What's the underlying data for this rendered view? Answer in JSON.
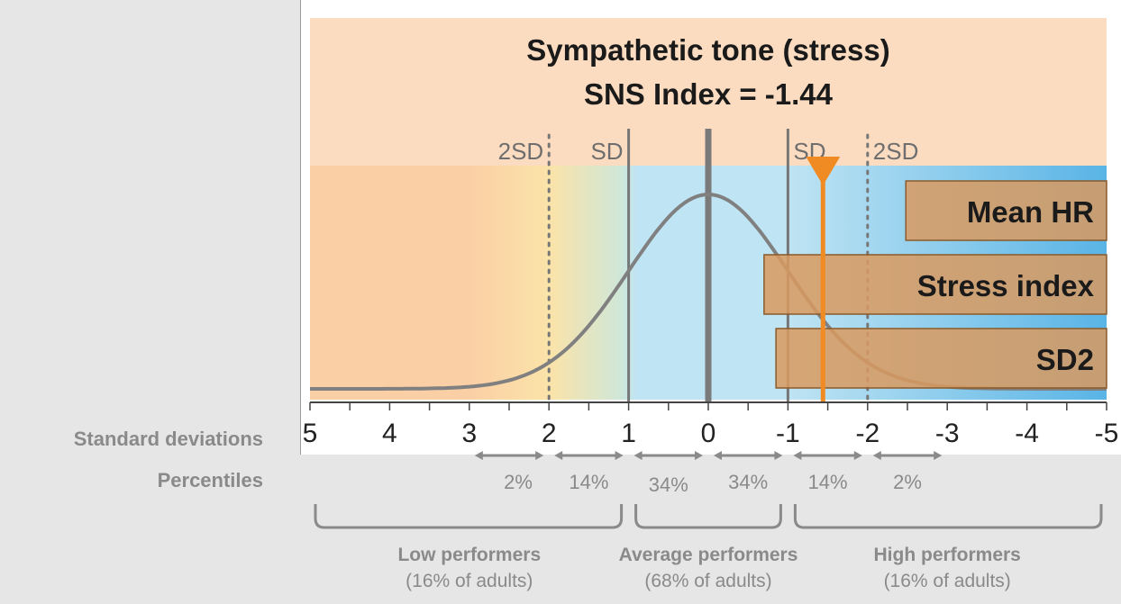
{
  "chart_data": {
    "type": "area",
    "title": "Sympathetic tone (stress)",
    "subtitle": "SNS Index = -1.44",
    "xlim": [
      5,
      -5
    ],
    "x_ticks": [
      5,
      4,
      3,
      2,
      1,
      0,
      -1,
      -2,
      -3,
      -4,
      -5
    ],
    "x_tick_labels": [
      "5",
      "4",
      "3",
      "2",
      "1",
      "0",
      "-1",
      "-2",
      "-3",
      "-4",
      "-5"
    ],
    "row_labels": {
      "std": "Standard deviations",
      "pct": "Percentiles"
    },
    "sd_lines": [
      {
        "x": 2,
        "label": "2SD",
        "style": "dotted"
      },
      {
        "x": 1,
        "label": "SD",
        "style": "solid"
      },
      {
        "x": 0,
        "label": "",
        "style": "mean"
      },
      {
        "x": -1,
        "label": "SD",
        "style": "solid"
      },
      {
        "x": -2,
        "label": "2SD",
        "style": "dotted"
      }
    ],
    "curve": {
      "type": "normal",
      "mean": 0,
      "sd": 1
    },
    "marker": {
      "x": -1.44,
      "color": "#f08b23"
    },
    "percentiles": [
      {
        "from": 3,
        "to": 2,
        "label": "2%"
      },
      {
        "from": 2,
        "to": 1,
        "label": "14%"
      },
      {
        "from": 1,
        "to": 0,
        "label": "34%"
      },
      {
        "from": 0,
        "to": -1,
        "label": "34%"
      },
      {
        "from": -1,
        "to": -2,
        "label": "14%"
      },
      {
        "from": -2,
        "to": -3,
        "label": "2%"
      }
    ],
    "bars": [
      {
        "label": "Mean HR",
        "start": -2.48,
        "end": -5
      },
      {
        "label": "Stress index",
        "start": -0.7,
        "end": -5
      },
      {
        "label": "SD2",
        "start": -0.85,
        "end": -5
      }
    ],
    "groups": [
      {
        "from": 5,
        "to": 1,
        "line1": "Low performers",
        "line2": "(16% of adults)"
      },
      {
        "from": 1,
        "to": -1,
        "line1": "Average performers",
        "line2": "(68% of adults)"
      },
      {
        "from": -1,
        "to": -5,
        "line1": "High performers",
        "line2": "(16% of adults)"
      }
    ],
    "colors": {
      "page_bg": "#e6e6e6",
      "header_bg": "#fcdcc0",
      "low_zone": "#fbcfa6",
      "mid_zone": "#fbe3a8",
      "avg_zone": "#bfe4f3",
      "high_zone": "#59b4e6",
      "curve": "#808080",
      "bar_fill": "#d99a5f",
      "bar_stroke": "#8a5a2a",
      "marker": "#f08b23",
      "axis": "#444444",
      "muted": "#808080"
    }
  }
}
